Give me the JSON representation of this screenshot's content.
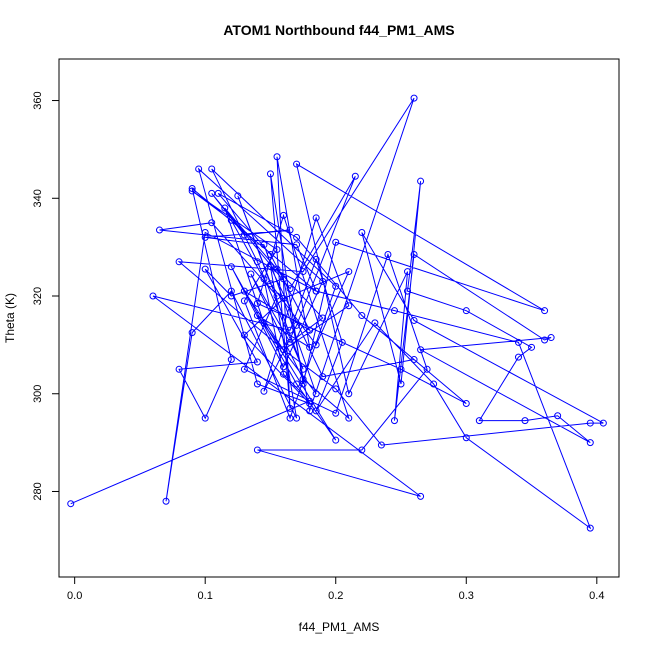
{
  "chart_data": {
    "type": "line",
    "title": "ATOM1 Northbound f44_PM1_AMS",
    "xlabel": "f44_PM1_AMS",
    "ylabel": "Theta (K)",
    "xlim": [
      -0.012,
      0.417
    ],
    "ylim": [
      262.5,
      368.5
    ],
    "xticks": [
      0.0,
      0.1,
      0.2,
      0.3,
      0.4
    ],
    "xtick_labels": [
      "0.0",
      "0.1",
      "0.2",
      "0.3",
      "0.4"
    ],
    "yticks": [
      280,
      300,
      320,
      340,
      360
    ],
    "ytick_labels": [
      "280",
      "300",
      "320",
      "340",
      "360"
    ],
    "grid": false,
    "series": [
      {
        "color": "#0000ff",
        "marker": "open-circle",
        "points": [
          [
            -0.003,
            277.5
          ],
          [
            0.18,
            298.5
          ],
          [
            0.16,
            304.0
          ],
          [
            0.145,
            323.5
          ],
          [
            0.12,
            335.5
          ],
          [
            0.09,
            341.5
          ],
          [
            0.155,
            329.5
          ],
          [
            0.13,
            319.0
          ],
          [
            0.165,
            295.0
          ],
          [
            0.2,
            322.0
          ],
          [
            0.105,
            346.0
          ],
          [
            0.14,
            327.0
          ],
          [
            0.175,
            305.0
          ],
          [
            0.125,
            340.5
          ],
          [
            0.15,
            322.5
          ],
          [
            0.185,
            310.0
          ],
          [
            0.21,
            325.0
          ],
          [
            0.16,
            319.5
          ],
          [
            0.13,
            312.0
          ],
          [
            0.18,
            298.0
          ],
          [
            0.14,
            302.0
          ],
          [
            0.095,
            346.0
          ],
          [
            0.19,
            323.0
          ],
          [
            0.16,
            305.5
          ],
          [
            0.12,
            326.0
          ],
          [
            0.17,
            302.0
          ],
          [
            0.2,
            290.5
          ],
          [
            0.145,
            314.5
          ],
          [
            0.115,
            338.0
          ],
          [
            0.155,
            325.5
          ],
          [
            0.19,
            315.5
          ],
          [
            0.165,
            310.5
          ],
          [
            0.135,
            324.5
          ],
          [
            0.175,
            303.0
          ],
          [
            0.21,
            295.0
          ],
          [
            0.16,
            336.5
          ],
          [
            0.14,
            318.5
          ],
          [
            0.25,
            305.0
          ],
          [
            0.3,
            298.0
          ],
          [
            0.22,
            316.0
          ],
          [
            0.17,
            332.0
          ],
          [
            0.11,
            341.0
          ],
          [
            0.15,
            328.5
          ],
          [
            0.18,
            313.0
          ],
          [
            0.13,
            321.0
          ],
          [
            0.16,
            309.0
          ],
          [
            0.2,
            301.0
          ],
          [
            0.235,
            289.5
          ],
          [
            0.395,
            294.0
          ],
          [
            0.405,
            294.0
          ],
          [
            0.26,
            315.0
          ],
          [
            0.22,
            333.0
          ],
          [
            0.25,
            302.0
          ],
          [
            0.265,
            343.5
          ],
          [
            0.255,
            321.0
          ],
          [
            0.3,
            317.0
          ],
          [
            0.35,
            309.5
          ],
          [
            0.34,
            307.5
          ],
          [
            0.31,
            294.5
          ],
          [
            0.345,
            294.5
          ],
          [
            0.37,
            295.5
          ],
          [
            0.395,
            290.0
          ],
          [
            0.265,
            309.0
          ],
          [
            0.365,
            311.5
          ],
          [
            0.36,
            311.0
          ],
          [
            0.26,
            328.5
          ],
          [
            0.245,
            294.5
          ],
          [
            0.255,
            325.0
          ],
          [
            0.21,
            300.0
          ],
          [
            0.17,
            347.0
          ],
          [
            0.36,
            317.0
          ],
          [
            0.2,
            331.0
          ],
          [
            0.175,
            302.0
          ],
          [
            0.15,
            345.0
          ],
          [
            0.165,
            297.0
          ],
          [
            0.155,
            348.5
          ],
          [
            0.18,
            309.5
          ],
          [
            0.14,
            316.0
          ],
          [
            0.185,
            300.0
          ],
          [
            0.145,
            330.5
          ],
          [
            0.1,
            332.0
          ],
          [
            0.165,
            333.5
          ],
          [
            0.13,
            332.5
          ],
          [
            0.105,
            341.0
          ],
          [
            0.165,
            321.5
          ],
          [
            0.215,
            344.5
          ],
          [
            0.17,
            314.0
          ],
          [
            0.145,
            300.5
          ],
          [
            0.185,
            336.0
          ],
          [
            0.21,
            318.0
          ],
          [
            0.16,
            309.0
          ],
          [
            0.08,
            327.0
          ],
          [
            0.175,
            325.0
          ],
          [
            0.26,
            360.5
          ],
          [
            0.18,
            296.5
          ],
          [
            0.16,
            323.5
          ],
          [
            0.12,
            320.0
          ],
          [
            0.1,
            325.5
          ],
          [
            0.14,
            306.5
          ],
          [
            0.08,
            305.0
          ],
          [
            0.1,
            295.0
          ],
          [
            0.12,
            307.0
          ],
          [
            0.09,
            342.0
          ],
          [
            0.185,
            321.0
          ],
          [
            0.17,
            330.5
          ],
          [
            0.065,
            333.5
          ],
          [
            0.105,
            335.0
          ],
          [
            0.155,
            320.0
          ],
          [
            0.13,
            305.0
          ],
          [
            0.2,
            296.0
          ],
          [
            0.24,
            328.5
          ],
          [
            0.27,
            305.0
          ],
          [
            0.22,
            288.5
          ],
          [
            0.14,
            288.5
          ],
          [
            0.265,
            279.0
          ],
          [
            0.06,
            320.0
          ],
          [
            0.165,
            313.0
          ],
          [
            0.185,
            327.5
          ],
          [
            0.205,
            310.5
          ],
          [
            0.185,
            296.5
          ],
          [
            0.23,
            314.5
          ],
          [
            0.275,
            302.0
          ],
          [
            0.3,
            291.0
          ],
          [
            0.395,
            272.5
          ],
          [
            0.34,
            310.5
          ],
          [
            0.245,
            317.0
          ],
          [
            0.185,
            321.0
          ],
          [
            0.1,
            333.0
          ],
          [
            0.07,
            278.0
          ],
          [
            0.09,
            312.5
          ],
          [
            0.12,
            321.0
          ],
          [
            0.17,
            295.0
          ],
          [
            0.15,
            326.0
          ],
          [
            0.19,
            303.5
          ],
          [
            0.26,
            307.0
          ]
        ]
      }
    ]
  }
}
